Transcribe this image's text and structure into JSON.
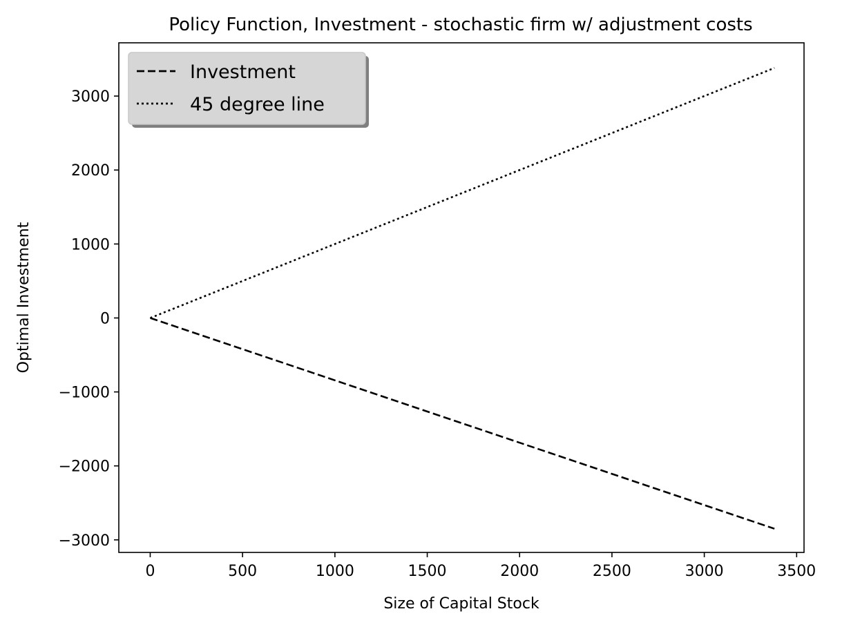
{
  "chart_data": {
    "type": "line",
    "title": "Policy Function, Investment - stochastic firm w/ adjustment costs",
    "xlabel": "Size of Capital Stock",
    "ylabel": "Optimal Investment",
    "xlim": [
      -170,
      3540
    ],
    "ylim": [
      -3170,
      3720
    ],
    "xticks": [
      0,
      500,
      1000,
      1500,
      2000,
      2500,
      3000,
      3500
    ],
    "xtick_labels": [
      "0",
      "500",
      "1000",
      "1500",
      "2000",
      "2500",
      "3000",
      "3500"
    ],
    "yticks": [
      -3000,
      -2000,
      -1000,
      0,
      1000,
      2000,
      3000
    ],
    "ytick_labels": [
      "−3000",
      "−2000",
      "−1000",
      "0",
      "1000",
      "2000",
      "3000"
    ],
    "grid": false,
    "legend_position": "top-left",
    "series": [
      {
        "name": "Investment",
        "style": "dashed",
        "color": "#000000",
        "x": [
          0,
          3380
        ],
        "y": [
          0,
          -2850
        ]
      },
      {
        "name": "45 degree line",
        "style": "dotted",
        "color": "#000000",
        "x": [
          0,
          3380
        ],
        "y": [
          0,
          3380
        ]
      }
    ]
  }
}
